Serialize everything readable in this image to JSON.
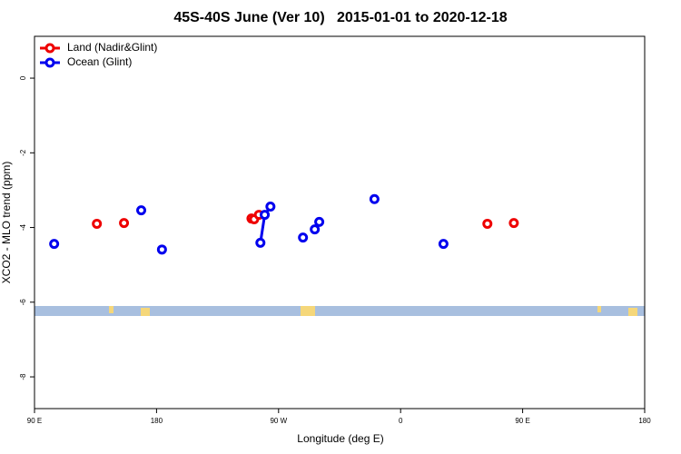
{
  "chart_data": {
    "type": "line",
    "title": "45S-40S June (Ver 10)   2015-01-01 to 2020-12-18",
    "xlabel": "Longitude (deg E)",
    "ylabel": "XCO2 - MLO trend (ppm)",
    "xlim": [
      90,
      540
    ],
    "xticks": [
      {
        "value": 90,
        "label": "90 E"
      },
      {
        "value": 180,
        "label": "180"
      },
      {
        "value": 270,
        "label": "90 W"
      },
      {
        "value": 360,
        "label": "0"
      },
      {
        "value": 450,
        "label": "90 E"
      },
      {
        "value": 540,
        "label": "180"
      }
    ],
    "ylim": [
      -8.85,
      1.12
    ],
    "yticks": [
      0,
      -2,
      -4,
      -6,
      -8
    ],
    "legend": "top-left",
    "series": [
      {
        "name": "Land (Nadir&Glint)",
        "color": "#ee0000",
        "x": [
          136,
          null,
          156,
          null,
          250,
          252,
          255.5,
          null,
          424,
          null,
          443.5
        ],
        "values": [
          -3.9,
          null,
          -3.88,
          null,
          -3.76,
          -3.78,
          -3.66,
          null,
          -3.9,
          null,
          -3.88
        ]
      },
      {
        "name": "Ocean (Glint)",
        "color": "#0000ee",
        "x": [
          104.5,
          null,
          168.7,
          null,
          184,
          null,
          256.6,
          259.8,
          264,
          null,
          288,
          null,
          296.7,
          null,
          300,
          null,
          340.7,
          null,
          391.6
        ],
        "values": [
          -4.44,
          null,
          -3.54,
          null,
          -4.59,
          null,
          -4.41,
          -3.66,
          -3.44,
          null,
          -4.27,
          null,
          -4.05,
          null,
          -3.85,
          null,
          -3.24,
          null,
          -4.44
        ]
      }
    ]
  }
}
